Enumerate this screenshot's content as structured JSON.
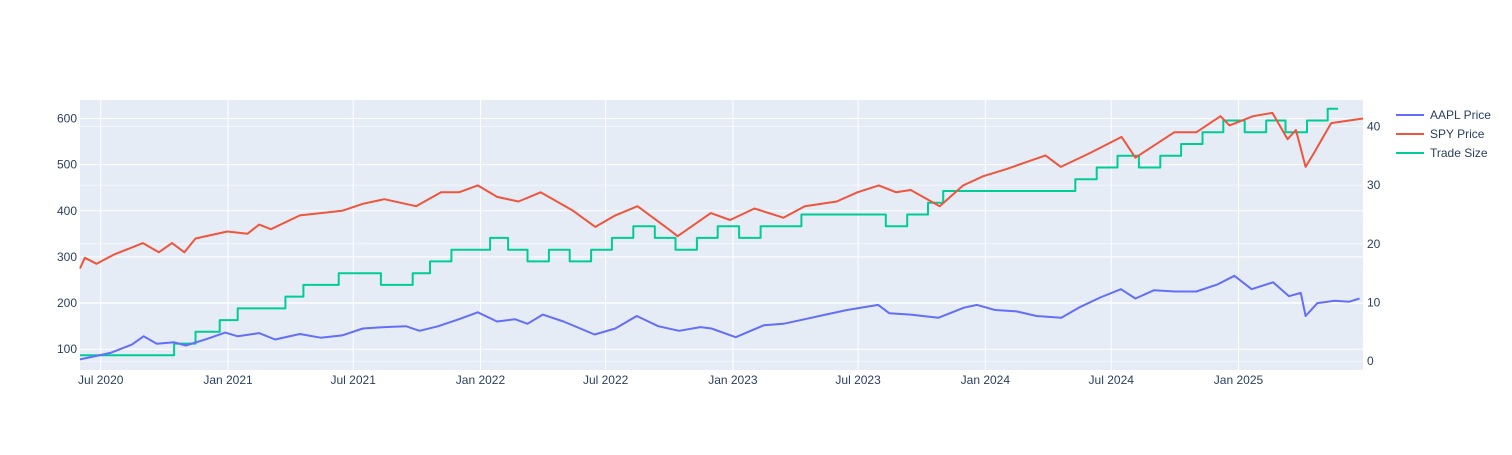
{
  "chart_data": {
    "type": "line",
    "title": "",
    "xlabel": "",
    "ylabel": "",
    "y2label": "",
    "grid": true,
    "legend_position": "right",
    "x_axis": {
      "type": "date",
      "range": [
        "2020-06-01",
        "2025-06-30"
      ],
      "ticks": [
        {
          "date": "2020-07-01",
          "label": "Jul 2020"
        },
        {
          "date": "2021-01-01",
          "label": "Jan 2021"
        },
        {
          "date": "2021-07-01",
          "label": "Jul 2021"
        },
        {
          "date": "2022-01-01",
          "label": "Jan 2022"
        },
        {
          "date": "2022-07-01",
          "label": "Jul 2022"
        },
        {
          "date": "2023-01-01",
          "label": "Jan 2023"
        },
        {
          "date": "2023-07-01",
          "label": "Jul 2023"
        },
        {
          "date": "2024-01-01",
          "label": "Jan 2024"
        },
        {
          "date": "2024-07-01",
          "label": "Jul 2024"
        },
        {
          "date": "2025-01-01",
          "label": "Jan 2025"
        }
      ]
    },
    "y_axis": {
      "range": [
        55,
        640
      ],
      "ticks": [
        100,
        200,
        300,
        400,
        500,
        600
      ]
    },
    "y2_axis": {
      "range": [
        -1.5,
        44.5
      ],
      "ticks": [
        0,
        10,
        20,
        30,
        40
      ]
    },
    "series": [
      {
        "name": "AAPL Price",
        "axis": "y",
        "color": "#636efa",
        "shape": "linear",
        "points": [
          [
            "2020-06-01",
            78
          ],
          [
            "2020-06-20",
            84
          ],
          [
            "2020-07-15",
            92
          ],
          [
            "2020-08-15",
            110
          ],
          [
            "2020-09-01",
            128
          ],
          [
            "2020-09-20",
            112
          ],
          [
            "2020-10-15",
            115
          ],
          [
            "2020-11-01",
            108
          ],
          [
            "2020-12-01",
            122
          ],
          [
            "2020-12-28",
            136
          ],
          [
            "2021-01-15",
            128
          ],
          [
            "2021-02-15",
            135
          ],
          [
            "2021-03-10",
            121
          ],
          [
            "2021-04-15",
            133
          ],
          [
            "2021-05-15",
            125
          ],
          [
            "2021-06-15",
            130
          ],
          [
            "2021-07-15",
            145
          ],
          [
            "2021-08-15",
            148
          ],
          [
            "2021-09-15",
            150
          ],
          [
            "2021-10-05",
            140
          ],
          [
            "2021-11-01",
            150
          ],
          [
            "2021-12-01",
            165
          ],
          [
            "2021-12-28",
            180
          ],
          [
            "2022-01-25",
            160
          ],
          [
            "2022-02-20",
            165
          ],
          [
            "2022-03-10",
            155
          ],
          [
            "2022-04-01",
            175
          ],
          [
            "2022-05-01",
            160
          ],
          [
            "2022-06-15",
            132
          ],
          [
            "2022-07-15",
            145
          ],
          [
            "2022-08-15",
            172
          ],
          [
            "2022-09-15",
            150
          ],
          [
            "2022-10-15",
            140
          ],
          [
            "2022-11-15",
            148
          ],
          [
            "2022-12-01",
            145
          ],
          [
            "2023-01-05",
            126
          ],
          [
            "2023-02-15",
            152
          ],
          [
            "2023-03-15",
            155
          ],
          [
            "2023-04-15",
            165
          ],
          [
            "2023-05-15",
            175
          ],
          [
            "2023-06-15",
            185
          ],
          [
            "2023-07-30",
            196
          ],
          [
            "2023-08-15",
            178
          ],
          [
            "2023-09-15",
            175
          ],
          [
            "2023-10-25",
            168
          ],
          [
            "2023-12-01",
            190
          ],
          [
            "2023-12-20",
            196
          ],
          [
            "2024-01-15",
            185
          ],
          [
            "2024-02-15",
            182
          ],
          [
            "2024-03-15",
            172
          ],
          [
            "2024-04-20",
            168
          ],
          [
            "2024-05-15",
            190
          ],
          [
            "2024-06-15",
            212
          ],
          [
            "2024-07-15",
            230
          ],
          [
            "2024-08-05",
            210
          ],
          [
            "2024-09-01",
            228
          ],
          [
            "2024-10-01",
            225
          ],
          [
            "2024-11-01",
            225
          ],
          [
            "2024-12-01",
            240
          ],
          [
            "2024-12-26",
            259
          ],
          [
            "2025-01-20",
            230
          ],
          [
            "2025-02-20",
            245
          ],
          [
            "2025-03-15",
            215
          ],
          [
            "2025-04-01",
            222
          ],
          [
            "2025-04-08",
            172
          ],
          [
            "2025-04-25",
            200
          ],
          [
            "2025-05-20",
            205
          ],
          [
            "2025-06-10",
            203
          ],
          [
            "2025-06-25",
            210
          ]
        ]
      },
      {
        "name": "SPY Price",
        "axis": "y",
        "color": "#ef553b",
        "shape": "linear",
        "points": [
          [
            "2020-06-01",
            275
          ],
          [
            "2020-06-08",
            298
          ],
          [
            "2020-06-25",
            285
          ],
          [
            "2020-07-20",
            305
          ],
          [
            "2020-08-31",
            330
          ],
          [
            "2020-09-23",
            310
          ],
          [
            "2020-10-12",
            330
          ],
          [
            "2020-10-30",
            310
          ],
          [
            "2020-11-15",
            340
          ],
          [
            "2020-12-31",
            355
          ],
          [
            "2021-01-29",
            350
          ],
          [
            "2021-02-15",
            370
          ],
          [
            "2021-03-04",
            360
          ],
          [
            "2021-04-15",
            390
          ],
          [
            "2021-05-15",
            395
          ],
          [
            "2021-06-15",
            400
          ],
          [
            "2021-07-15",
            415
          ],
          [
            "2021-08-15",
            425
          ],
          [
            "2021-09-30",
            410
          ],
          [
            "2021-11-05",
            440
          ],
          [
            "2021-12-01",
            440
          ],
          [
            "2021-12-28",
            455
          ],
          [
            "2022-01-25",
            430
          ],
          [
            "2022-02-25",
            420
          ],
          [
            "2022-03-29",
            440
          ],
          [
            "2022-05-15",
            400
          ],
          [
            "2022-06-16",
            365
          ],
          [
            "2022-07-15",
            390
          ],
          [
            "2022-08-16",
            410
          ],
          [
            "2022-09-30",
            360
          ],
          [
            "2022-10-13",
            345
          ],
          [
            "2022-11-30",
            395
          ],
          [
            "2022-12-28",
            380
          ],
          [
            "2023-02-01",
            405
          ],
          [
            "2023-03-15",
            385
          ],
          [
            "2023-04-15",
            410
          ],
          [
            "2023-05-31",
            420
          ],
          [
            "2023-06-30",
            440
          ],
          [
            "2023-07-31",
            455
          ],
          [
            "2023-08-25",
            440
          ],
          [
            "2023-09-15",
            445
          ],
          [
            "2023-10-27",
            410
          ],
          [
            "2023-11-30",
            455
          ],
          [
            "2023-12-29",
            475
          ],
          [
            "2024-01-31",
            490
          ],
          [
            "2024-03-28",
            520
          ],
          [
            "2024-04-19",
            495
          ],
          [
            "2024-05-31",
            525
          ],
          [
            "2024-07-16",
            560
          ],
          [
            "2024-08-05",
            515
          ],
          [
            "2024-09-30",
            570
          ],
          [
            "2024-11-01",
            570
          ],
          [
            "2024-12-06",
            605
          ],
          [
            "2024-12-19",
            585
          ],
          [
            "2025-01-22",
            605
          ],
          [
            "2025-02-19",
            612
          ],
          [
            "2025-03-13",
            555
          ],
          [
            "2025-03-25",
            575
          ],
          [
            "2025-04-08",
            495
          ],
          [
            "2025-04-20",
            525
          ],
          [
            "2025-05-15",
            590
          ],
          [
            "2025-06-30",
            600
          ]
        ]
      },
      {
        "name": "Trade Size",
        "axis": "y2",
        "color": "#00cc96",
        "shape": "hv",
        "points": [
          [
            "2020-06-01",
            1
          ],
          [
            "2020-10-15",
            3
          ],
          [
            "2020-11-15",
            5
          ],
          [
            "2020-12-20",
            7
          ],
          [
            "2021-01-15",
            9
          ],
          [
            "2021-03-25",
            11
          ],
          [
            "2021-04-20",
            13
          ],
          [
            "2021-06-10",
            15
          ],
          [
            "2021-08-10",
            13
          ],
          [
            "2021-09-25",
            15
          ],
          [
            "2021-10-20",
            17
          ],
          [
            "2021-11-20",
            19
          ],
          [
            "2022-01-15",
            21
          ],
          [
            "2022-02-10",
            19
          ],
          [
            "2022-03-10",
            17
          ],
          [
            "2022-04-10",
            19
          ],
          [
            "2022-05-10",
            17
          ],
          [
            "2022-06-10",
            19
          ],
          [
            "2022-07-10",
            21
          ],
          [
            "2022-08-10",
            23
          ],
          [
            "2022-09-10",
            21
          ],
          [
            "2022-10-10",
            19
          ],
          [
            "2022-11-10",
            21
          ],
          [
            "2022-12-10",
            23
          ],
          [
            "2023-01-10",
            21
          ],
          [
            "2023-02-10",
            23
          ],
          [
            "2023-04-10",
            25
          ],
          [
            "2023-08-10",
            23
          ],
          [
            "2023-09-10",
            25
          ],
          [
            "2023-10-10",
            27
          ],
          [
            "2023-11-01",
            29
          ],
          [
            "2024-05-10",
            31
          ],
          [
            "2024-06-10",
            33
          ],
          [
            "2024-07-10",
            35
          ],
          [
            "2024-08-10",
            33
          ],
          [
            "2024-09-10",
            35
          ],
          [
            "2024-10-10",
            37
          ],
          [
            "2024-11-10",
            39
          ],
          [
            "2024-12-10",
            41
          ],
          [
            "2025-01-10",
            39
          ],
          [
            "2025-02-10",
            41
          ],
          [
            "2025-03-10",
            39
          ],
          [
            "2025-04-10",
            41
          ],
          [
            "2025-05-10",
            43
          ],
          [
            "2025-05-25",
            43
          ]
        ]
      }
    ]
  }
}
